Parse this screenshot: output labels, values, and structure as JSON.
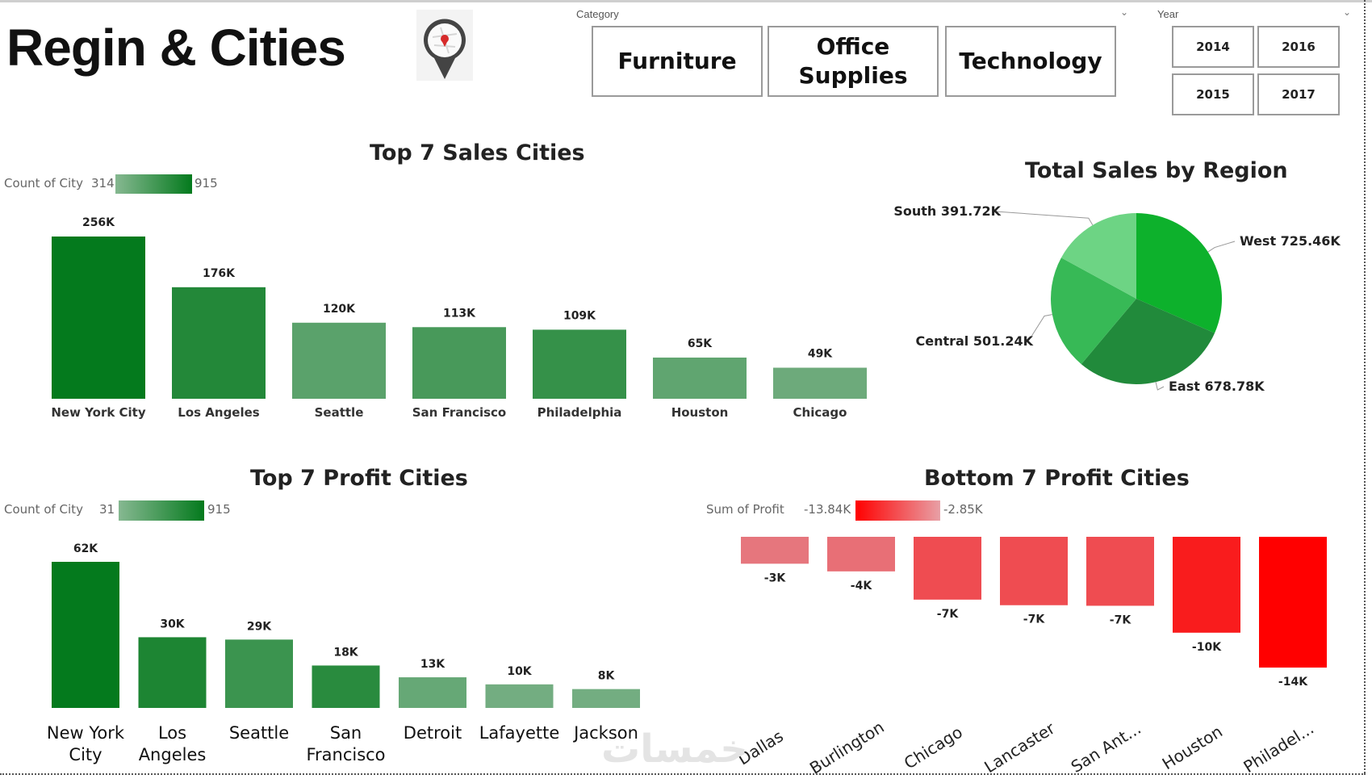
{
  "page_title": "Regin & Cities",
  "icons": {
    "logo": "map-pin-icon"
  },
  "slicers": {
    "category": {
      "label": "Category",
      "options": [
        "Furniture",
        "Office\nSupplies",
        "Technology"
      ]
    },
    "year": {
      "label": "Year",
      "options": [
        "2014",
        "2016",
        "2015",
        "2017"
      ]
    }
  },
  "colors": {
    "green_dark": "#047a1d",
    "green_light": "#7fb38c",
    "red_dark": "#ff0000",
    "red_light": "#e28b93",
    "pie": [
      "#0db12c",
      "#218a3b",
      "#37b956",
      "#6dd484"
    ]
  },
  "watermark": "خمسات",
  "chart_data": [
    {
      "type": "bar",
      "title": "Top 7 Sales Cities",
      "legend": {
        "label": "Count of City",
        "min": "314",
        "max": "915"
      },
      "categories": [
        "New York City",
        "Los Angeles",
        "Seattle",
        "San Francisco",
        "Philadelphia",
        "Houston",
        "Chicago"
      ],
      "values": [
        256,
        176,
        120,
        113,
        109,
        65,
        49
      ],
      "data_labels": [
        "256K",
        "176K",
        "120K",
        "113K",
        "109K",
        "65K",
        "49K"
      ],
      "color_intensity": [
        1.0,
        0.75,
        0.3,
        0.45,
        0.6,
        0.25,
        0.15
      ]
    },
    {
      "type": "pie",
      "title": "Total Sales by Region",
      "slices": [
        {
          "name": "West",
          "value": 725.46,
          "label": "West 725.46K"
        },
        {
          "name": "East",
          "value": 678.78,
          "label": "East 678.78K"
        },
        {
          "name": "Central",
          "value": 501.24,
          "label": "Central 501.24K"
        },
        {
          "name": "South",
          "value": 391.72,
          "label": "South 391.72K"
        }
      ]
    },
    {
      "type": "bar",
      "title": "Top 7 Profit Cities",
      "legend": {
        "label": "Count of City",
        "min": "31",
        "max": "915"
      },
      "categories": [
        "New York City",
        "Los Angeles",
        "Seattle",
        "San Francisco",
        "Detroit",
        "Lafayette",
        "Jackson"
      ],
      "values": [
        62,
        30,
        29,
        18,
        13,
        10,
        8
      ],
      "data_labels": [
        "62K",
        "30K",
        "29K",
        "18K",
        "13K",
        "10K",
        "8K"
      ],
      "color_intensity": [
        1.0,
        0.8,
        0.55,
        0.7,
        0.2,
        0.1,
        0.1
      ]
    },
    {
      "type": "bar",
      "title": "Bottom 7 Profit Cities",
      "legend": {
        "label": "Sum of Profit",
        "min": "-13.84K",
        "max": "-2.85K"
      },
      "categories": [
        "Dallas",
        "Burlington",
        "Chicago",
        "Lancaster",
        "San Ant...",
        "Houston",
        "Philadel..."
      ],
      "values": [
        -2.85,
        -3.66,
        -6.65,
        -7.24,
        -7.3,
        -10.15,
        -13.84
      ],
      "data_labels": [
        "-3K",
        "-4K",
        "-7K",
        "-7K",
        "-7K",
        "-10K",
        "-14K"
      ],
      "color_intensity": [
        0.15,
        0.2,
        0.45,
        0.45,
        0.45,
        0.8,
        1.0
      ]
    }
  ]
}
